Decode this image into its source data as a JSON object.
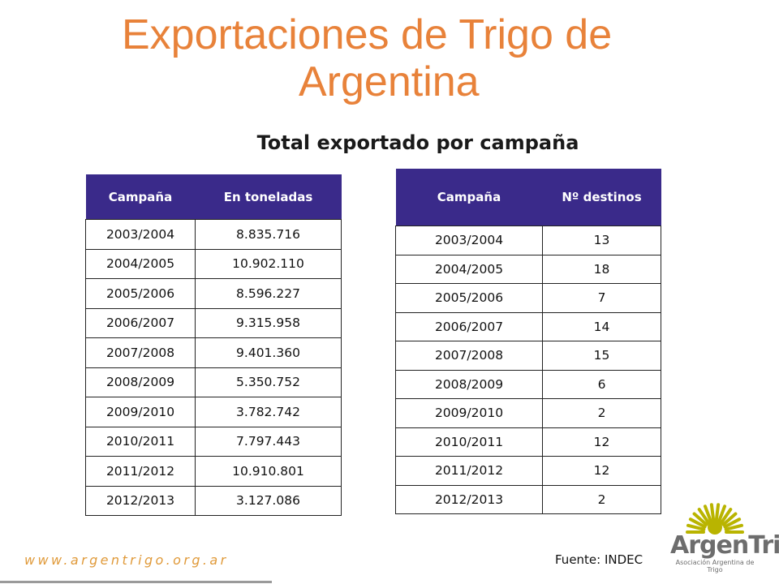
{
  "title": {
    "line1": "Exportaciones de Trigo de",
    "line2": "Argentina"
  },
  "subtitle": "Total exportado por campaña",
  "table_tons": {
    "headers": [
      "Campaña",
      "En toneladas"
    ],
    "rows": [
      [
        "2003/2004",
        "8.835.716"
      ],
      [
        "2004/2005",
        "10.902.110"
      ],
      [
        "2005/2006",
        "8.596.227"
      ],
      [
        "2006/2007",
        "9.315.958"
      ],
      [
        "2007/2008",
        "9.401.360"
      ],
      [
        "2008/2009",
        "5.350.752"
      ],
      [
        "2009/2010",
        "3.782.742"
      ],
      [
        "2010/2011",
        "7.797.443"
      ],
      [
        "2011/2012",
        "10.910.801"
      ],
      [
        "2012/2013",
        "3.127.086"
      ]
    ]
  },
  "table_destinations": {
    "headers": [
      "Campaña",
      "Nº destinos"
    ],
    "rows": [
      [
        "2003/2004",
        "13"
      ],
      [
        "2004/2005",
        "18"
      ],
      [
        "2005/2006",
        "7"
      ],
      [
        "2006/2007",
        "14"
      ],
      [
        "2007/2008",
        "15"
      ],
      [
        "2008/2009",
        "6"
      ],
      [
        "2009/2010",
        "2"
      ],
      [
        "2010/2011",
        "12"
      ],
      [
        "2011/2012",
        "12"
      ],
      [
        "2012/2013",
        "2"
      ]
    ]
  },
  "footer": {
    "url": "www.argentrigo.org.ar",
    "source": "Fuente: INDEC"
  },
  "logo": {
    "name": "ArgenTrigo",
    "tagline": "Asociación Argentina de Trigo"
  },
  "colors": {
    "title": "#e8823a",
    "header_bg": "#3a2a8a",
    "url": "#e09a3a",
    "logo": "#b9b400"
  }
}
